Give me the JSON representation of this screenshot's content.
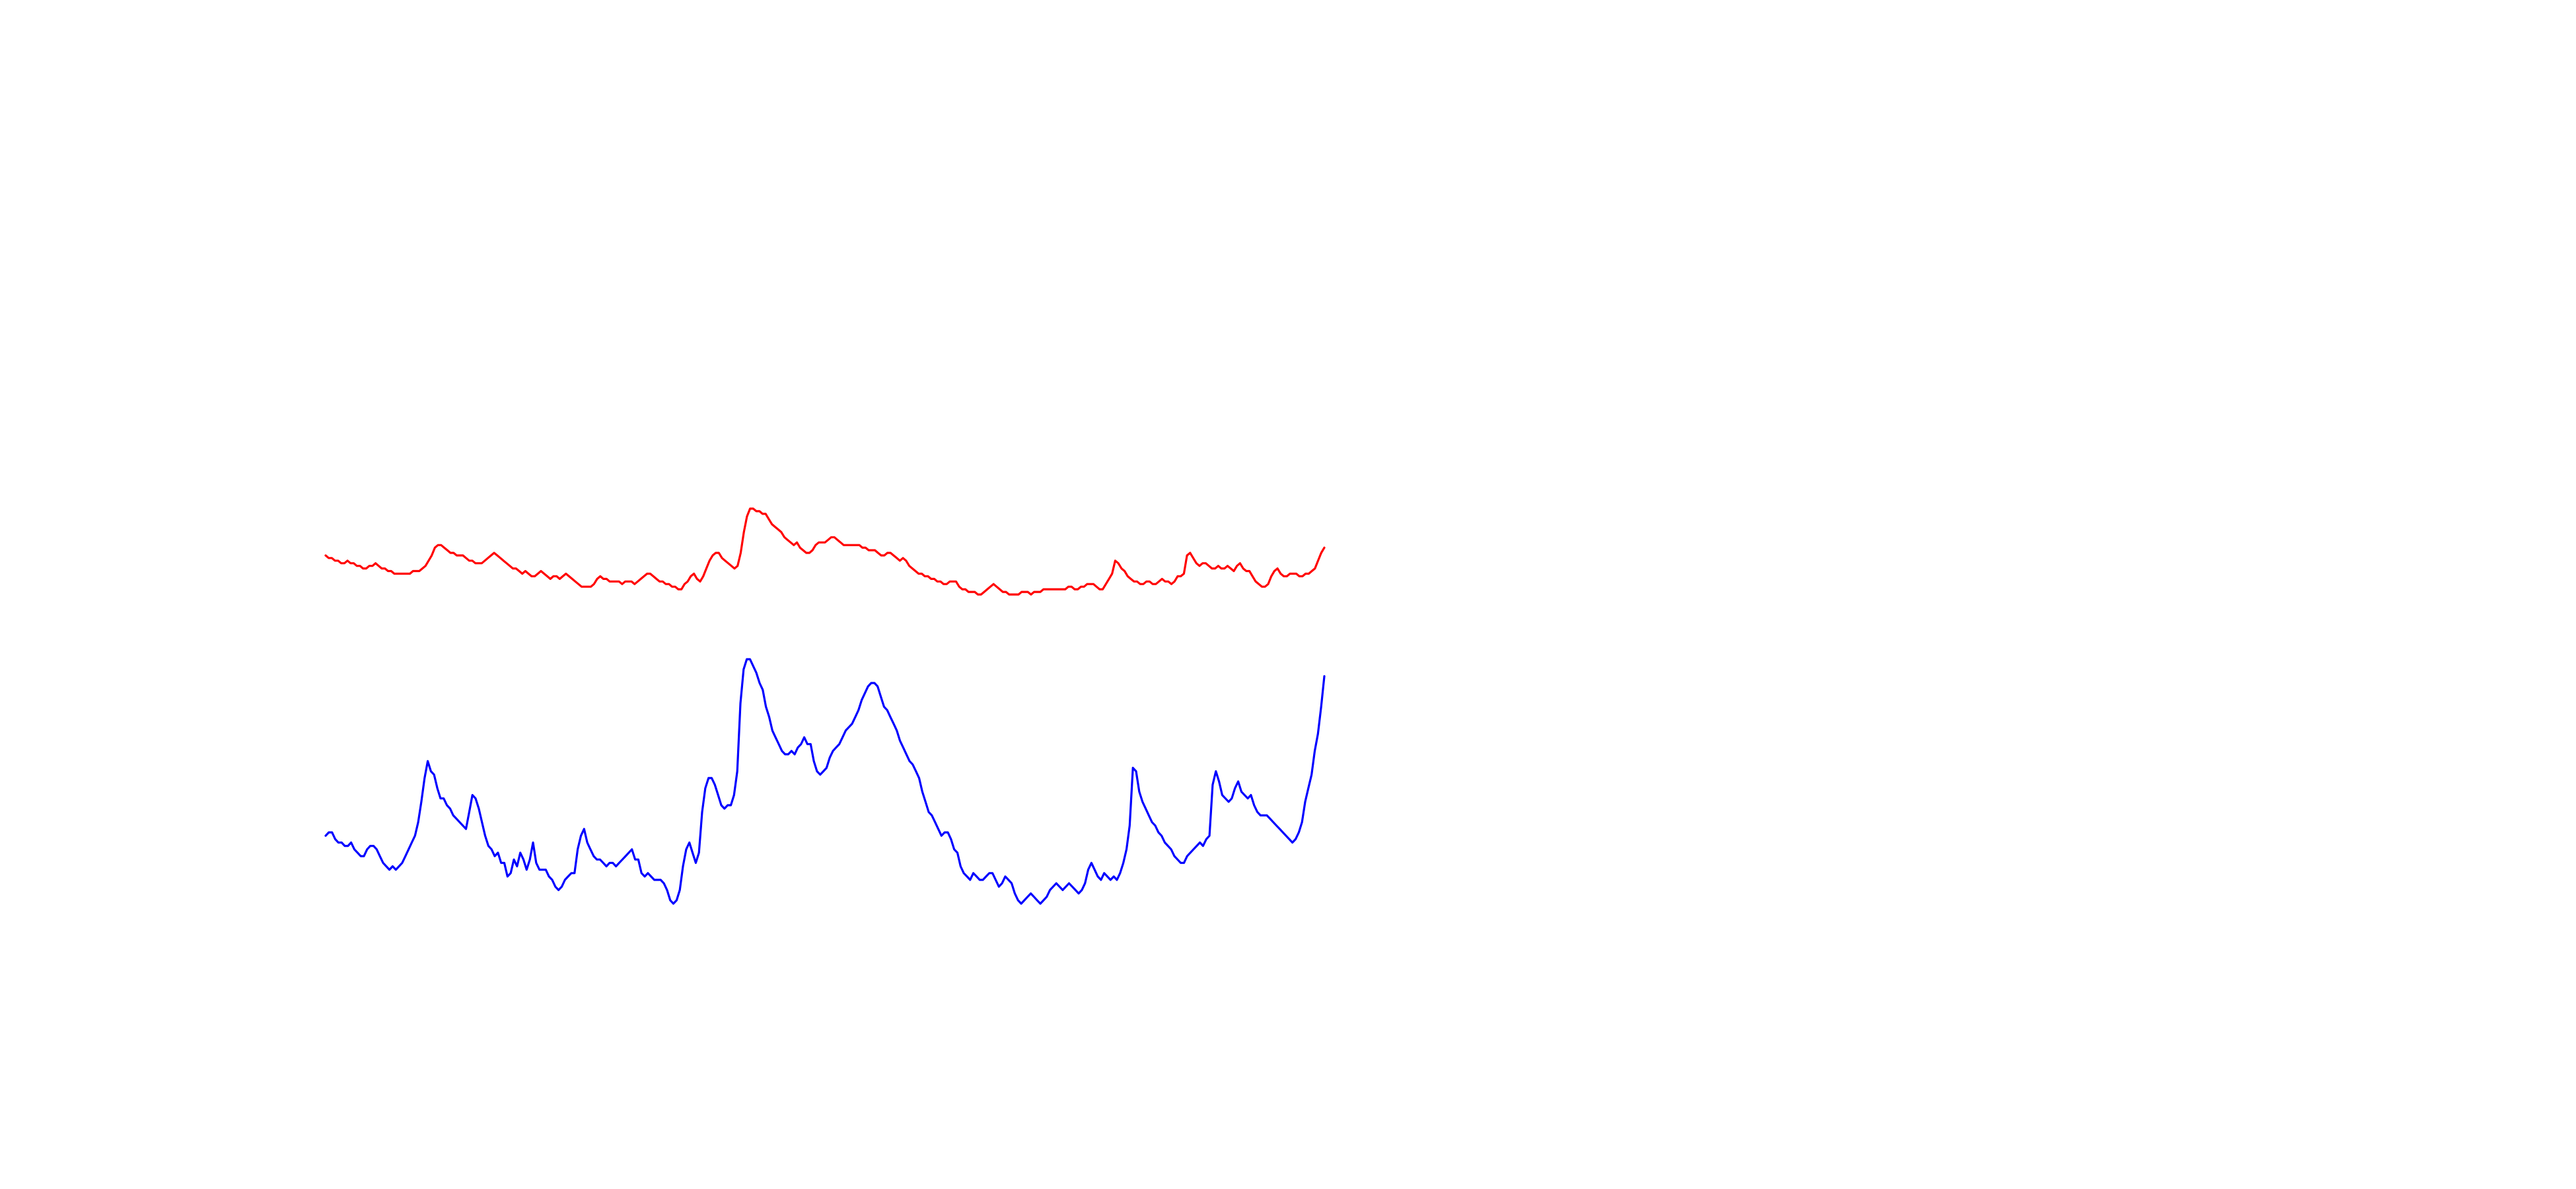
{
  "chart_data": {
    "type": "line",
    "title": "",
    "xlabel": "",
    "ylabel": "",
    "grid": false,
    "legend": "none",
    "x_range": [
      0,
      300
    ],
    "series": [
      {
        "color": "#ff0000",
        "values": [
          38,
          39,
          39,
          40,
          40,
          41,
          41,
          40,
          41,
          41,
          42,
          42,
          43,
          43,
          42,
          42,
          41,
          42,
          43,
          43,
          44,
          44,
          45,
          45,
          45,
          45,
          45,
          45,
          44,
          44,
          44,
          43,
          42,
          40,
          38,
          35,
          34,
          34,
          35,
          36,
          37,
          37,
          38,
          38,
          38,
          39,
          40,
          40,
          41,
          41,
          41,
          40,
          39,
          38,
          37,
          38,
          39,
          40,
          41,
          42,
          43,
          43,
          44,
          45,
          44,
          45,
          46,
          46,
          45,
          44,
          45,
          46,
          47,
          46,
          46,
          47,
          46,
          45,
          46,
          47,
          48,
          49,
          50,
          50,
          50,
          50,
          49,
          47,
          46,
          47,
          47,
          48,
          48,
          48,
          48,
          49,
          48,
          48,
          48,
          49,
          48,
          47,
          46,
          45,
          45,
          46,
          47,
          48,
          48,
          49,
          49,
          50,
          50,
          51,
          51,
          49,
          48,
          46,
          45,
          47,
          48,
          46,
          43,
          40,
          38,
          37,
          37,
          39,
          40,
          41,
          42,
          43,
          42,
          37,
          29,
          23,
          20,
          20,
          21,
          21,
          22,
          22,
          24,
          26,
          27,
          28,
          29,
          31,
          32,
          33,
          34,
          33,
          35,
          36,
          37,
          37,
          36,
          34,
          33,
          33,
          33,
          32,
          31,
          31,
          32,
          33,
          34,
          34,
          34,
          34,
          34,
          34,
          35,
          35,
          36,
          36,
          36,
          37,
          38,
          38,
          37,
          37,
          38,
          39,
          40,
          39,
          40,
          42,
          43,
          44,
          45,
          45,
          46,
          46,
          47,
          47,
          48,
          48,
          49,
          49,
          48,
          48,
          48,
          50,
          51,
          51,
          52,
          52,
          52,
          53,
          53,
          52,
          51,
          50,
          49,
          50,
          51,
          52,
          52,
          53,
          53,
          53,
          53,
          52,
          52,
          52,
          53,
          52,
          52,
          52,
          51,
          51,
          51,
          51,
          51,
          51,
          51,
          51,
          50,
          50,
          51,
          51,
          50,
          50,
          49,
          49,
          49,
          50,
          51,
          51,
          49,
          47,
          45,
          40,
          41,
          43,
          44,
          46,
          47,
          48,
          48,
          49,
          49,
          48,
          48,
          49,
          49,
          48,
          47,
          48,
          48,
          49,
          48,
          46,
          46,
          45,
          38,
          37,
          39,
          41,
          42,
          41,
          41,
          42,
          43,
          43,
          42,
          43,
          43,
          42,
          43,
          44,
          42,
          41,
          43,
          44,
          44,
          46,
          48,
          49,
          50,
          50,
          49,
          46,
          44,
          43,
          45,
          46,
          46,
          45,
          45,
          45,
          46,
          46,
          45,
          45,
          44,
          43,
          40,
          37,
          35
        ]
      },
      {
        "color": "#0000ff",
        "values": [
          25,
          24,
          24,
          26,
          27,
          27,
          28,
          28,
          27,
          29,
          30,
          31,
          31,
          29,
          28,
          28,
          29,
          31,
          33,
          34,
          35,
          34,
          35,
          34,
          33,
          31,
          29,
          27,
          25,
          21,
          15,
          8,
          3,
          6,
          7,
          11,
          14,
          14,
          16,
          17,
          19,
          20,
          21,
          22,
          23,
          18,
          13,
          14,
          17,
          21,
          25,
          28,
          29,
          31,
          30,
          33,
          33,
          37,
          36,
          32,
          34,
          30,
          32,
          35,
          32,
          27,
          33,
          35,
          35,
          35,
          37,
          38,
          40,
          41,
          40,
          38,
          37,
          36,
          36,
          29,
          25,
          23,
          27,
          29,
          31,
          32,
          32,
          33,
          34,
          33,
          33,
          34,
          33,
          32,
          31,
          30,
          29,
          32,
          32,
          36,
          37,
          36,
          37,
          38,
          38,
          38,
          39,
          41,
          44,
          45,
          44,
          41,
          34,
          29,
          27,
          30,
          33,
          30,
          18,
          11,
          8,
          8,
          10,
          13,
          16,
          17,
          16,
          16,
          13,
          6,
          -14,
          -24,
          -27,
          -27,
          -25,
          -23,
          -20,
          -18,
          -13,
          -10,
          -6,
          -4,
          -2,
          0,
          1,
          1,
          0,
          1,
          -1,
          -2,
          -4,
          -2,
          -2,
          3,
          6,
          7,
          6,
          5,
          2,
          0,
          -1,
          -2,
          -4,
          -6,
          -7,
          -8,
          -10,
          -12,
          -15,
          -17,
          -19,
          -20,
          -20,
          -19,
          -16,
          -13,
          -12,
          -10,
          -8,
          -6,
          -3,
          -1,
          1,
          3,
          4,
          6,
          8,
          12,
          15,
          18,
          19,
          21,
          23,
          25,
          24,
          24,
          26,
          29,
          30,
          34,
          36,
          37,
          38,
          36,
          37,
          38,
          38,
          37,
          36,
          36,
          38,
          40,
          39,
          37,
          38,
          39,
          42,
          44,
          45,
          44,
          43,
          42,
          43,
          44,
          45,
          44,
          43,
          41,
          40,
          39,
          40,
          41,
          40,
          39,
          40,
          41,
          42,
          41,
          39,
          35,
          33,
          35,
          37,
          38,
          36,
          37,
          38,
          37,
          38,
          36,
          33,
          29,
          22,
          5,
          6,
          12,
          15,
          17,
          19,
          21,
          22,
          24,
          25,
          27,
          28,
          29,
          31,
          32,
          33,
          33,
          31,
          30,
          29,
          28,
          27,
          28,
          26,
          25,
          10,
          6,
          9,
          13,
          14,
          15,
          14,
          11,
          9,
          12,
          13,
          14,
          13,
          16,
          18,
          19,
          19,
          19,
          20,
          21,
          22,
          23,
          24,
          25,
          26,
          27,
          26,
          24,
          21,
          15,
          11,
          7,
          0,
          -5,
          -13,
          -22
        ]
      }
    ]
  }
}
